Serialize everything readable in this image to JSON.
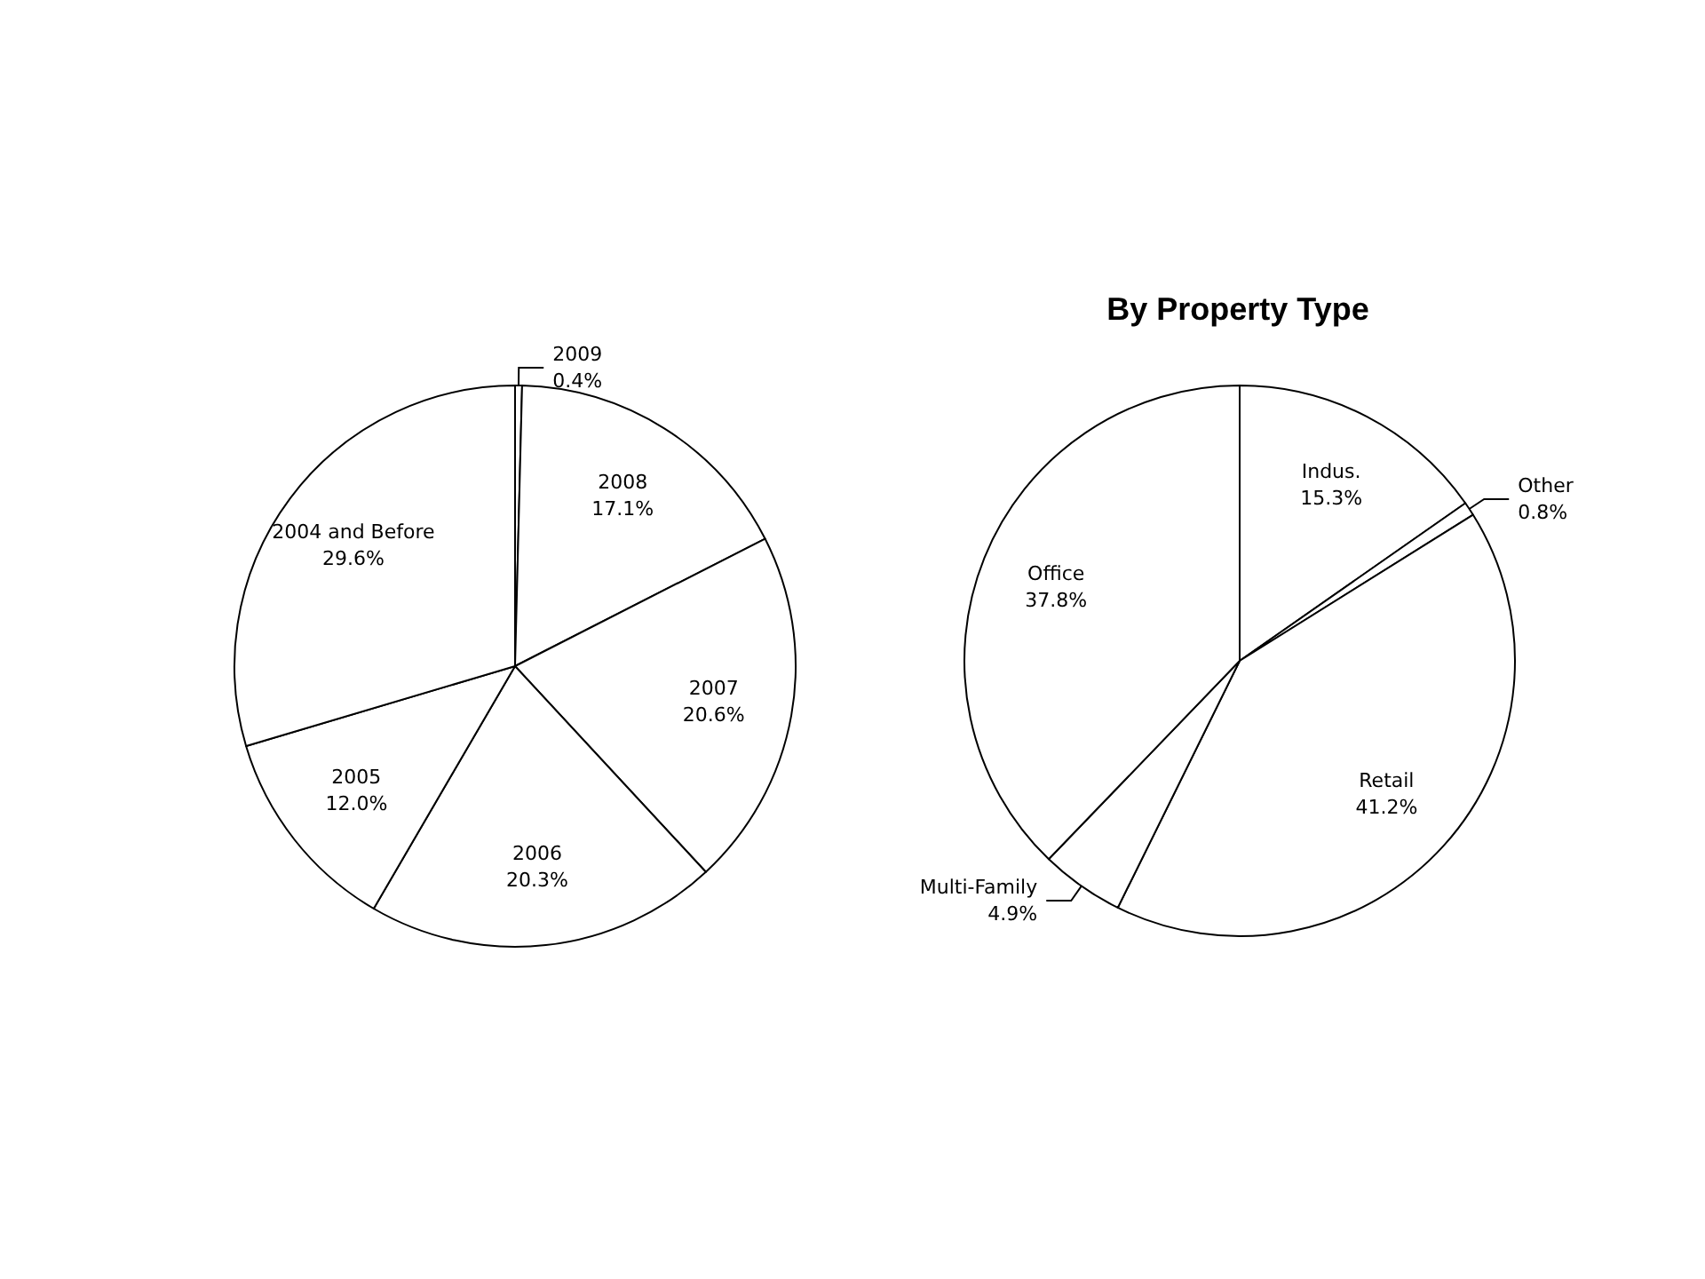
{
  "chart_data": [
    {
      "type": "pie",
      "categories": [
        "2009",
        "2008",
        "2007",
        "2006",
        "2005",
        "2004 and Before"
      ],
      "values": [
        0.4,
        17.1,
        20.6,
        20.3,
        12.0,
        29.6
      ],
      "value_labels": [
        "0.4%",
        "17.1%",
        "20.6%",
        "20.3%",
        "12.0%",
        "29.6%"
      ],
      "colors": [
        "#ffffff",
        "#ffffff",
        "#ffffff",
        "#ffffff",
        "#ffffff",
        "#ffffff"
      ],
      "legend": false
    },
    {
      "type": "pie",
      "title": "By Property Type",
      "categories": [
        "Indus.",
        "Other",
        "Retail",
        "Multi-Family",
        "Office"
      ],
      "values": [
        15.3,
        0.8,
        41.2,
        4.9,
        37.8
      ],
      "value_labels": [
        "15.3%",
        "0.8%",
        "41.2%",
        "4.9%",
        "37.8%"
      ],
      "colors": [
        "#ffffff",
        "#ffffff",
        "#ffffff",
        "#ffffff",
        "#ffffff"
      ],
      "legend": false
    }
  ]
}
